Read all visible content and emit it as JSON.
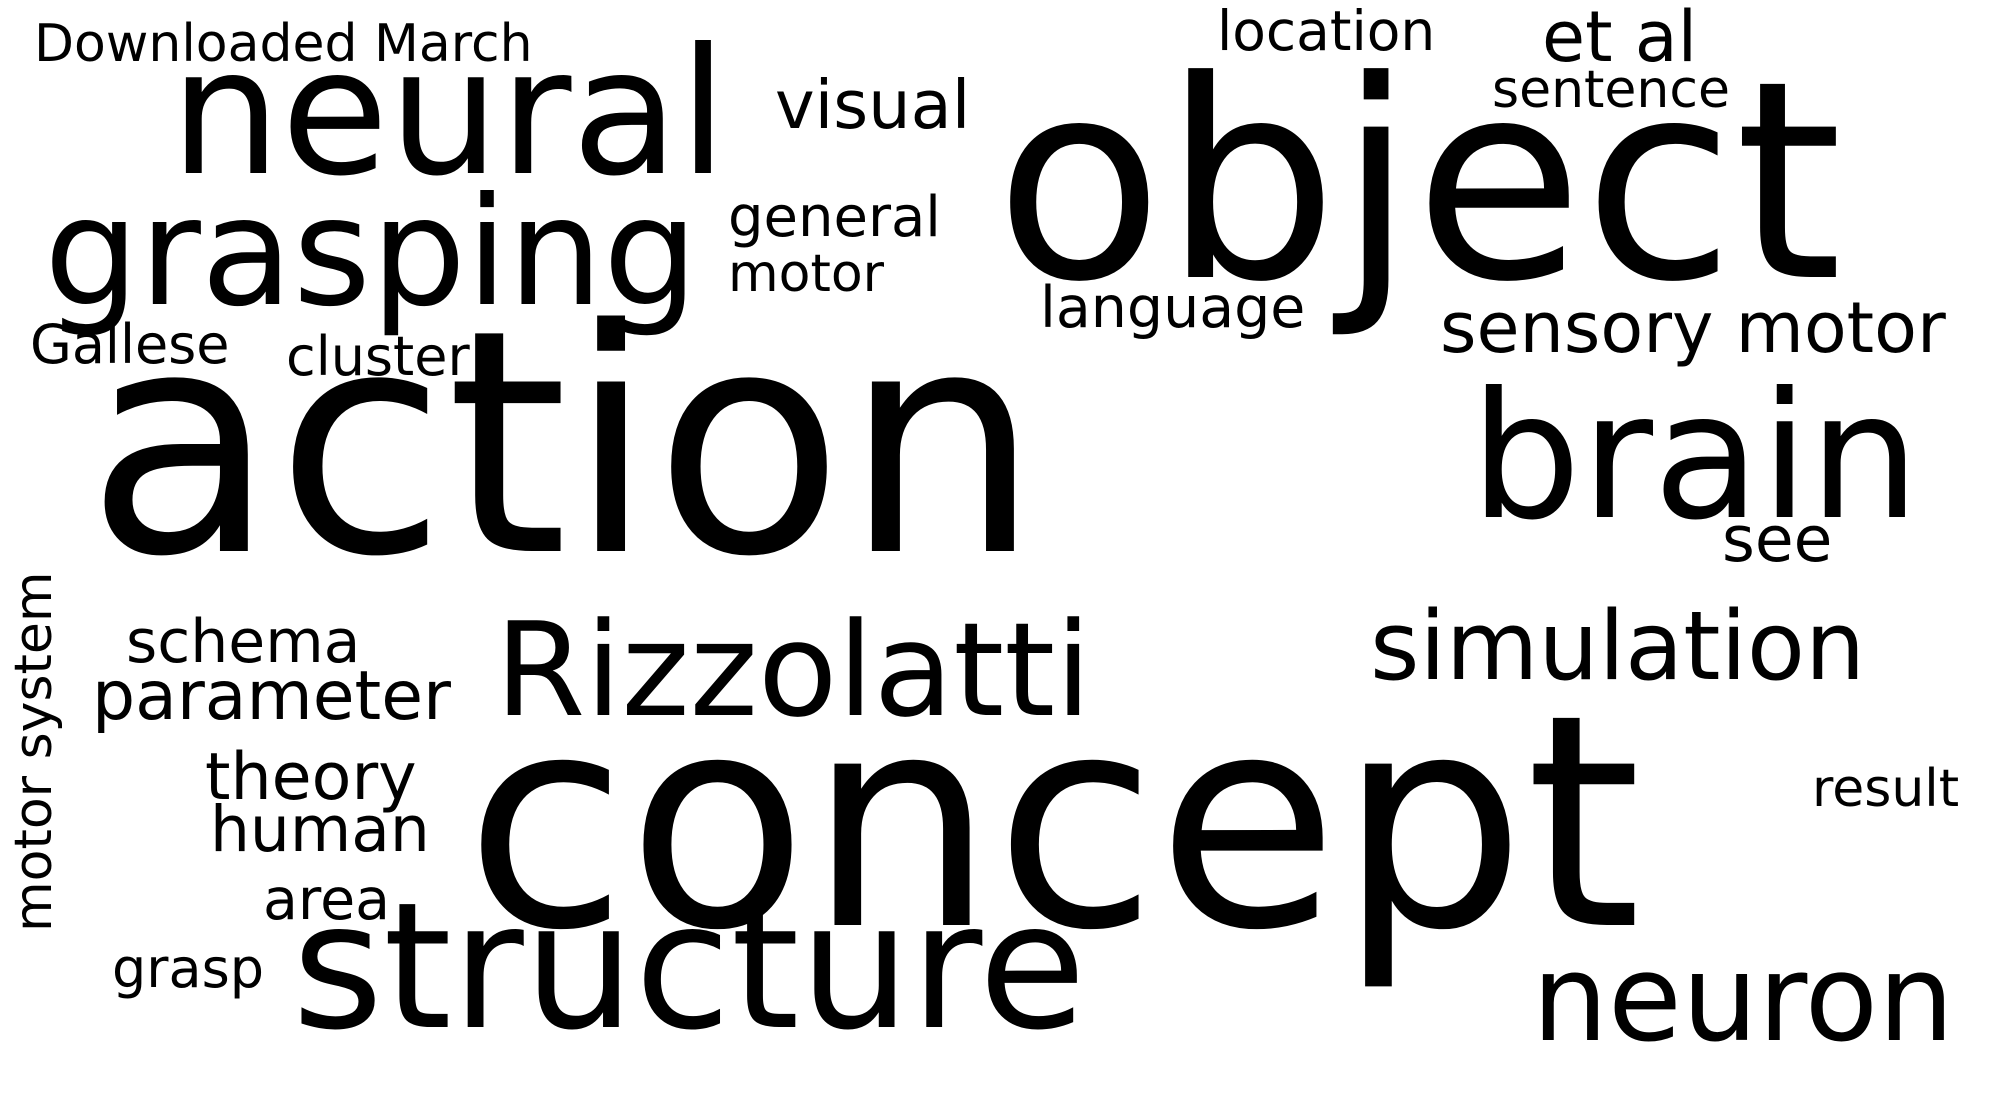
{
  "words": {
    "downloaded_march": "Downloaded March",
    "neural": "neural",
    "visual": "visual",
    "location": "location",
    "et_al": "et al",
    "sentence": "sentence",
    "object": "object",
    "grasping": "grasping",
    "general": "general",
    "motor": "motor",
    "language": "language",
    "sensory_motor": "sensory motor",
    "gallese": "Gallese",
    "cluster": "cluster",
    "action": "action",
    "brain": "brain",
    "see": "see",
    "motor_system": "motor system",
    "schema": "schema",
    "parameter": "parameter",
    "rizzolatti": "Rizzolatti",
    "simulation": "simulation",
    "theory": "theory",
    "human": "human",
    "concept": "concept",
    "result": "result",
    "area": "area",
    "grasp": "grasp",
    "structure": "structure",
    "neuron": "neuron"
  }
}
